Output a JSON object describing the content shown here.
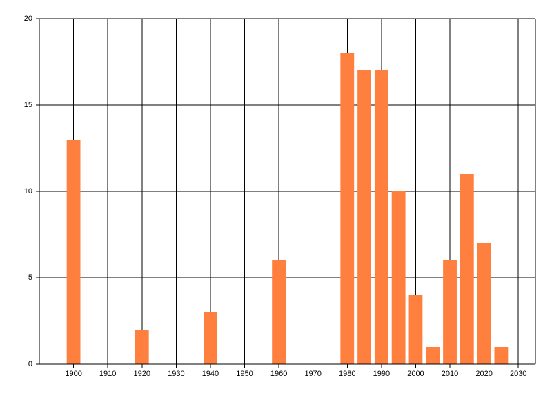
{
  "chart_data": {
    "type": "bar",
    "x": [
      1900,
      1920,
      1940,
      1960,
      1980,
      1985,
      1990,
      1995,
      2000,
      2005,
      2010,
      2015,
      2020,
      2025
    ],
    "values": [
      13,
      2,
      3,
      6,
      18,
      17,
      17,
      10,
      4,
      1,
      6,
      11,
      7,
      1
    ],
    "color": "#ff7f3f",
    "xlim": [
      1890,
      2035
    ],
    "xticks": [
      1900,
      1910,
      1920,
      1930,
      1940,
      1950,
      1960,
      1970,
      1980,
      1990,
      2000,
      2010,
      2020,
      2030
    ],
    "ylim": [
      0,
      20
    ],
    "yticks": [
      0,
      5,
      10,
      15,
      20
    ],
    "grid": true
  }
}
